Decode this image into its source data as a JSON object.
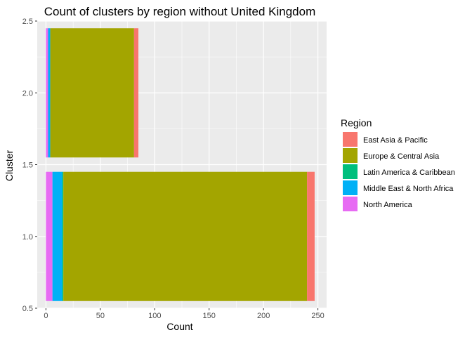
{
  "chart_data": {
    "type": "bar",
    "orientation": "horizontal",
    "stacked": true,
    "title": "Count of clusters by region without United Kingdom",
    "xlabel": "Count",
    "ylabel": "Cluster",
    "xlim": [
      -8,
      258
    ],
    "ylim": [
      0.5,
      2.5
    ],
    "x_ticks": [
      0,
      50,
      100,
      150,
      200,
      250
    ],
    "x_tick_labels": [
      "0",
      "50",
      "100",
      "150",
      "200",
      "250"
    ],
    "y_ticks": [
      0.5,
      1.0,
      1.5,
      2.0,
      2.5
    ],
    "y_tick_labels": [
      "0.5",
      "1.0",
      "1.5",
      "2.0",
      "2.5"
    ],
    "grid": true,
    "bar_width": 0.9,
    "categories": [
      1,
      2
    ],
    "series": [
      {
        "name": "North America",
        "color": "#E76BF3",
        "values": [
          6,
          2
        ]
      },
      {
        "name": "Middle East & North Africa",
        "color": "#00B0F6",
        "values": [
          9,
          2
        ]
      },
      {
        "name": "Latin America & Caribbean",
        "color": "#00BF7D",
        "values": [
          1,
          0
        ]
      },
      {
        "name": "Europe & Central Asia",
        "color": "#A3A500",
        "values": [
          224,
          77
        ]
      },
      {
        "name": "East Asia & Pacific",
        "color": "#F8766D",
        "values": [
          7,
          4
        ]
      }
    ],
    "legend": {
      "title": "Region",
      "position": "right",
      "items": [
        {
          "label": "East Asia & Pacific",
          "color": "#F8766D"
        },
        {
          "label": "Europe & Central Asia",
          "color": "#A3A500"
        },
        {
          "label": "Latin America & Caribbean",
          "color": "#00BF7D"
        },
        {
          "label": "Middle East & North Africa",
          "color": "#00B0F6"
        },
        {
          "label": "North America",
          "color": "#E76BF3"
        }
      ]
    },
    "panel_background": "#EBEBEB",
    "grid_color": "#FFFFFF"
  }
}
